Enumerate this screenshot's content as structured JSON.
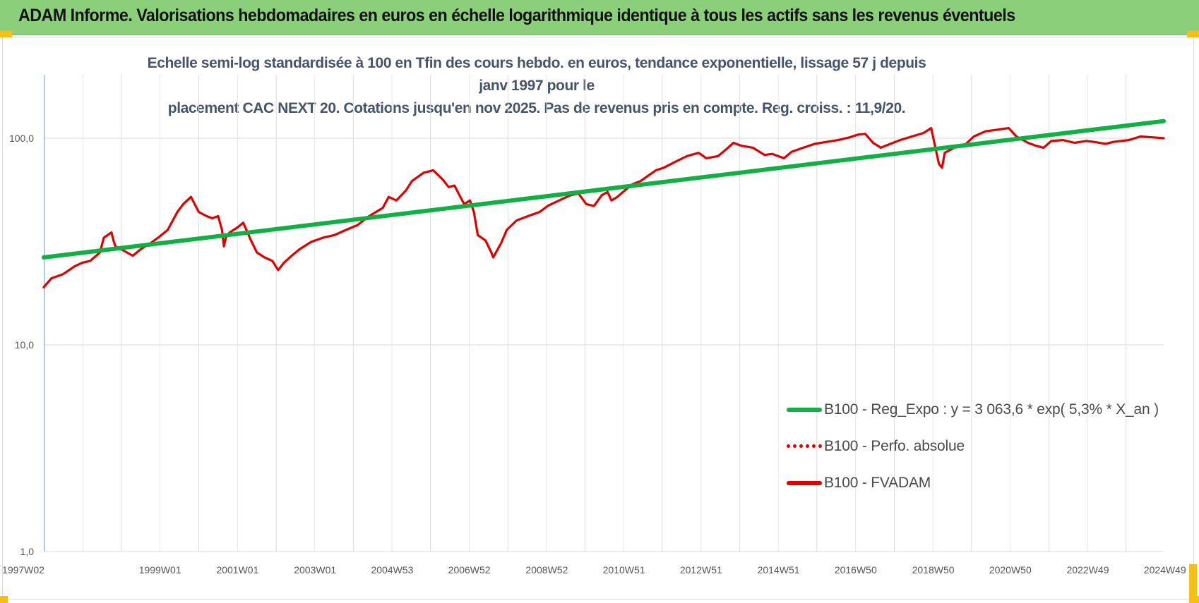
{
  "banner": {
    "title": "ADAM Informe. Valorisations hebdomadaires en euros en échelle logarithmique identique à tous les actifs sans les revenus éventuels",
    "bg_color": "#8ccf7a",
    "corner_color": "#f4bf17"
  },
  "chart_data": {
    "type": "line",
    "title_line1": "Echelle semi-log standardisée à 100 en Tfin des cours hebdo. en euros, tendance exponentielle, lissage 57 j depuis janv 1997 pour le",
    "title_line2": "placement CAC NEXT 20. Cotations jusqu'en nov 2025. Pas de revenus pris en compte. Reg. croiss. : 11,9/20.",
    "y_scale": "log",
    "ylim": [
      1,
      200
    ],
    "y_ticks": [
      {
        "value": 1,
        "label": "1,0"
      },
      {
        "value": 10,
        "label": "10,0"
      },
      {
        "value": 100,
        "label": "100,0"
      }
    ],
    "x_unit": "year",
    "xlim": [
      1997.02,
      2025.9
    ],
    "x_ticks": [
      {
        "value": 1997.02,
        "label": "1997W02"
      },
      {
        "value": 1999.0,
        "label": "1999W01"
      },
      {
        "value": 2001.0,
        "label": "2001W01"
      },
      {
        "value": 2003.0,
        "label": "2003W01"
      },
      {
        "value": 2004.99,
        "label": "2004W53"
      },
      {
        "value": 2006.98,
        "label": "2006W52"
      },
      {
        "value": 2008.98,
        "label": "2008W52"
      },
      {
        "value": 2010.97,
        "label": "2010W51"
      },
      {
        "value": 2012.96,
        "label": "2012W51"
      },
      {
        "value": 2014.96,
        "label": "2014W51"
      },
      {
        "value": 2016.95,
        "label": "2016W50"
      },
      {
        "value": 2018.95,
        "label": "2018W50"
      },
      {
        "value": 2020.94,
        "label": "2020W50"
      },
      {
        "value": 2022.94,
        "label": "2022W49"
      },
      {
        "value": 2024.93,
        "label": "2024W49"
      }
    ],
    "grid": "vertical lines and horizontal decade lines",
    "legend_position": "bottom-right",
    "series": [
      {
        "name": "B100 - Reg_Expo : y = 3 063,6 * exp( 5,3% *  X_an )",
        "color": "#10b044",
        "style": "solid",
        "x": [
          1997.0,
          2025.9
        ],
        "y": [
          26.5,
          121.0
        ]
      },
      {
        "name": "B100 - Perfo. absolue",
        "color": "#e00000",
        "style": "dotted",
        "x": [],
        "y": []
      },
      {
        "name": "B100 - FVADAM",
        "color": "#e00000",
        "style": "solid",
        "x": [
          1997.0,
          1997.2,
          1997.5,
          1997.8,
          1998.0,
          1998.2,
          1998.45,
          1998.55,
          1998.75,
          1998.8,
          1998.85,
          1999.0,
          1999.3,
          1999.5,
          1999.75,
          1999.95,
          2000.2,
          2000.45,
          2000.6,
          2000.7,
          2000.8,
          2001.0,
          2001.2,
          2001.35,
          2001.5,
          2001.6,
          2001.65,
          2001.7,
          2001.8,
          2002.0,
          2002.15,
          2002.35,
          2002.5,
          2002.7,
          2002.9,
          2003.05,
          2003.2,
          2003.4,
          2003.6,
          2003.9,
          2004.2,
          2004.5,
          2004.8,
          2005.1,
          2005.4,
          2005.75,
          2005.9,
          2006.1,
          2006.35,
          2006.5,
          2006.8,
          2007.05,
          2007.3,
          2007.45,
          2007.6,
          2007.75,
          2007.85,
          2008.0,
          2008.1,
          2008.2,
          2008.4,
          2008.55,
          2008.6,
          2008.8,
          2008.95,
          2009.2,
          2009.5,
          2009.8,
          2010.0,
          2010.2,
          2010.4,
          2010.6,
          2010.8,
          2011.0,
          2011.2,
          2011.4,
          2011.55,
          2011.65,
          2011.8,
          2012.0,
          2012.2,
          2012.4,
          2012.6,
          2012.8,
          2013.0,
          2013.3,
          2013.6,
          2013.9,
          2014.1,
          2014.4,
          2014.6,
          2014.8,
          2015.0,
          2015.3,
          2015.6,
          2015.8,
          2016.1,
          2016.3,
          2016.6,
          2016.9,
          2017.2,
          2017.5,
          2017.8,
          2018.0,
          2018.2,
          2018.4,
          2018.6,
          2018.85,
          2019.1,
          2019.4,
          2019.7,
          2019.9,
          2020.1,
          2020.18,
          2020.25,
          2020.5,
          2020.8,
          2021.0,
          2021.3,
          2021.6,
          2021.9,
          2022.1,
          2022.4,
          2022.6,
          2022.8,
          2023.0,
          2023.3,
          2023.6,
          2023.9,
          2024.1,
          2024.4,
          2024.6,
          2024.8,
          2025.0,
          2025.3,
          2025.6,
          2025.9
        ],
        "y": [
          19.0,
          21.0,
          22.0,
          24.0,
          25.0,
          25.5,
          28.0,
          33.0,
          35.0,
          32.0,
          30.0,
          29.0,
          27.0,
          29.0,
          31.0,
          33.0,
          36.0,
          44.0,
          48.0,
          50.0,
          52.0,
          44.0,
          42.0,
          41.0,
          42.0,
          36.0,
          30.0,
          33.0,
          35.0,
          37.0,
          39.0,
          32.0,
          28.0,
          26.5,
          25.5,
          23.0,
          25.0,
          27.0,
          29.0,
          31.5,
          33.0,
          34.0,
          36.0,
          38.0,
          42.0,
          46.0,
          52.0,
          50.0,
          56.0,
          62.0,
          68.0,
          70.0,
          63.0,
          58.0,
          59.0,
          52.0,
          48.0,
          50.0,
          44.0,
          34.0,
          32.0,
          28.0,
          26.5,
          31.0,
          36.0,
          40.0,
          42.0,
          44.0,
          47.0,
          49.0,
          51.0,
          53.0,
          54.0,
          48.0,
          47.0,
          53.0,
          55.0,
          50.0,
          52.0,
          56.0,
          60.0,
          62.0,
          66.0,
          70.0,
          72.0,
          77.0,
          82.0,
          85.0,
          80.0,
          82.0,
          88.0,
          95.0,
          92.0,
          90.0,
          83.0,
          84.0,
          80.0,
          86.0,
          90.0,
          94.0,
          96.0,
          98.0,
          101.0,
          104.0,
          105.0,
          95.0,
          90.0,
          94.0,
          98.0,
          102.0,
          106.0,
          112.0,
          75.0,
          72.0,
          85.0,
          90.0,
          94.0,
          102.0,
          108.0,
          110.0,
          112.0,
          102.0,
          95.0,
          92.0,
          90.0,
          97.0,
          98.0,
          95.0,
          97.0,
          96.0,
          94.0,
          96.0,
          97.0,
          98.0,
          102.0,
          101.0,
          100.0
        ]
      }
    ]
  }
}
